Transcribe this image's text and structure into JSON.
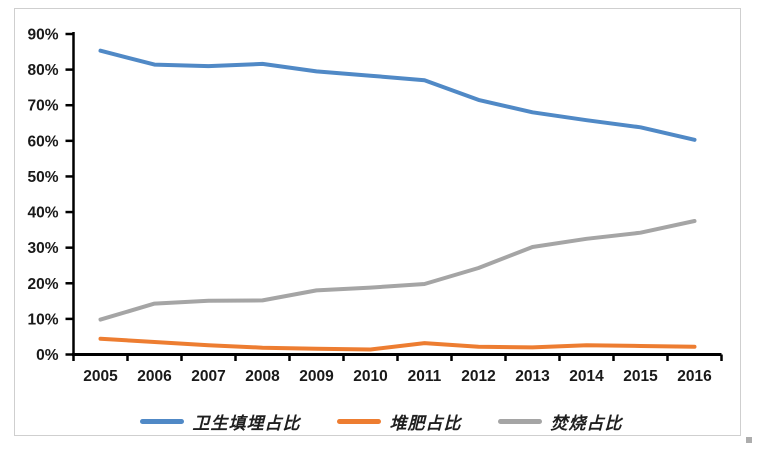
{
  "figure": {
    "background": "#ffffff",
    "frame_border_color": "#cfcfcf",
    "axis_color": "#000000",
    "tick_label_color": "#1a1a1a"
  },
  "chart_data": {
    "type": "line",
    "title": "",
    "xlabel": "",
    "ylabel": "",
    "x": [
      "2005",
      "2006",
      "2007",
      "2008",
      "2009",
      "2010",
      "2011",
      "2012",
      "2013",
      "2014",
      "2015",
      "2016"
    ],
    "series": [
      {
        "name": "卫生填埋占比",
        "color": "#5089C6",
        "values": [
          85.3,
          81.4,
          81.0,
          81.6,
          79.5,
          78.3,
          77.0,
          71.5,
          68.0,
          65.8,
          63.8,
          60.3
        ]
      },
      {
        "name": "堆肥占比",
        "color": "#ED7D31",
        "values": [
          4.4,
          3.5,
          2.6,
          1.9,
          1.6,
          1.4,
          3.2,
          2.2,
          2.0,
          2.6,
          2.4,
          2.2
        ]
      },
      {
        "name": "焚烧占比",
        "color": "#A5A5A5",
        "values": [
          9.8,
          14.3,
          15.1,
          15.2,
          18.0,
          18.8,
          19.8,
          24.3,
          30.2,
          32.5,
          34.2,
          37.5
        ]
      }
    ],
    "ylim": [
      0,
      90
    ],
    "y_ticks": [
      "0%",
      "10%",
      "20%",
      "30%",
      "40%",
      "50%",
      "60%",
      "70%",
      "80%",
      "90%"
    ],
    "grid": false,
    "legend_position": "bottom"
  }
}
